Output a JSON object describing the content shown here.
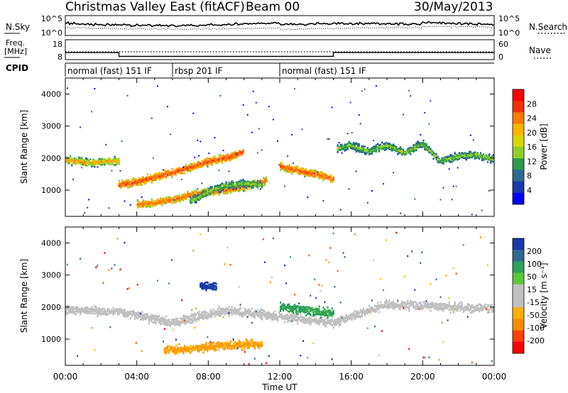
{
  "header": {
    "title": "Christmas Valley East (fitACF)",
    "beam": "Beam 00",
    "date": "30/May/2013"
  },
  "noise_panel": {
    "left_label": "N.Sky",
    "right_label": "N.Search",
    "left_ticks": [
      "10^5",
      "10^0"
    ],
    "right_ticks": [
      "10^5",
      "10^0"
    ]
  },
  "freq_panel": {
    "left_label_line1": "Freq.",
    "left_label_line2": "[MHz]",
    "left_ticks": [
      "18",
      "8"
    ],
    "right_label": "Nave",
    "right_ticks": [
      "60",
      "0"
    ]
  },
  "cpid_panel": {
    "label": "CPID",
    "segments": [
      {
        "label": "normal (fast) 151 IF",
        "start_h": 0,
        "end_h": 6
      },
      {
        "label": "rbsp 201 IF",
        "start_h": 6,
        "end_h": 12
      },
      {
        "label": "normal (fast) 151 IF",
        "start_h": 12,
        "end_h": 24
      }
    ]
  },
  "power_panel": {
    "ylabel": "Slant Range [km]",
    "colorbar_label": "Power [dB]",
    "colorbar_ticks": [
      "28",
      "24",
      "20",
      "16",
      "12",
      "8",
      "4"
    ],
    "colorbar_colors": [
      "#ff0000",
      "#f03000",
      "#ff7a00",
      "#ffb400",
      "#d8d800",
      "#8ecf2e",
      "#2e9a4a",
      "#2e6a90",
      "#1a3aa8",
      "#0000ff"
    ]
  },
  "velocity_panel": {
    "ylabel": "Slant Range [km]",
    "colorbar_label": "Velocity [m s⁻¹]",
    "colorbar_ticks": [
      "200",
      "100",
      "50",
      "15",
      "-15",
      "-50",
      "-100",
      "-200"
    ],
    "colorbar_colors": [
      "#1a3aa8",
      "#2e6a90",
      "#2ea05a",
      "#5ac83a",
      "#c0c0c0",
      "#c0c0c0",
      "#ffb000",
      "#ff8a00",
      "#ff4000",
      "#ff0000"
    ]
  },
  "x_axis": {
    "label": "Time UT",
    "ticks": [
      "00:00",
      "04:00",
      "08:00",
      "12:00",
      "16:00",
      "20:00",
      "00:00"
    ]
  },
  "chart_data": [
    {
      "type": "line",
      "title": "Christmas Valley East (fitACF)",
      "xlabel": "Time UT",
      "ylabel": "Freq. [MHz]",
      "x_unit": "hours UT",
      "xlim": [
        0,
        24
      ],
      "ylim": [
        8,
        18
      ],
      "series": [
        {
          "x": [
            0,
            3,
            3,
            15,
            15,
            24
          ],
          "values": [
            13.5,
            13.5,
            10.5,
            10.5,
            13.5,
            13.5
          ]
        }
      ]
    },
    {
      "type": "heatmap",
      "name": "Power",
      "colorbar_label": "Power [dB]",
      "xlabel": "Time UT",
      "ylabel": "Slant Range [km]",
      "xlim": [
        0,
        24
      ],
      "ylim": [
        180,
        4500
      ],
      "clim": [
        0,
        30
      ],
      "bands": [
        {
          "t": [
            0,
            0.5,
            1.5,
            2.5,
            3
          ],
          "r": [
            1950,
            1900,
            1850,
            1900,
            1900
          ],
          "value": 21
        },
        {
          "t": [
            3,
            4,
            5,
            6,
            7,
            8,
            9,
            10
          ],
          "r": [
            1150,
            1250,
            1400,
            1550,
            1700,
            1900,
            2000,
            2200
          ],
          "value": 26
        },
        {
          "t": [
            4,
            5,
            6,
            7,
            8,
            9,
            10,
            11.3
          ],
          "r": [
            550,
            600,
            700,
            850,
            950,
            1000,
            1100,
            1300
          ],
          "value": 24
        },
        {
          "t": [
            7,
            8,
            9,
            10,
            11
          ],
          "r": [
            650,
            950,
            1150,
            1200,
            1150
          ],
          "value": 17
        },
        {
          "t": [
            12,
            13,
            14,
            15
          ],
          "r": [
            1750,
            1600,
            1500,
            1350
          ],
          "value": 25
        },
        {
          "t": [
            15.2,
            16,
            17,
            18,
            19,
            20,
            21,
            22,
            23,
            24
          ],
          "r": [
            2300,
            2400,
            2200,
            2400,
            2150,
            2450,
            1900,
            2050,
            2100,
            1950
          ],
          "value": 17
        }
      ]
    },
    {
      "type": "heatmap",
      "name": "Velocity",
      "colorbar_label": "Velocity [m s⁻¹]",
      "xlabel": "Time UT",
      "ylabel": "Slant Range [km]",
      "xlim": [
        0,
        24
      ],
      "ylim": [
        180,
        4500
      ],
      "clim": [
        -200,
        200
      ],
      "bands": [
        {
          "t": [
            0,
            3,
            6,
            9,
            12,
            15,
            18,
            21,
            24
          ],
          "r": [
            1900,
            1850,
            1500,
            1900,
            1700,
            1500,
            2100,
            2000,
            1950
          ],
          "value": 0
        },
        {
          "t": [
            5.5,
            7,
            9,
            11
          ],
          "r": [
            650,
            700,
            800,
            850
          ],
          "value": -60
        },
        {
          "t": [
            7.5,
            8.5
          ],
          "r": [
            2650,
            2650
          ],
          "value": 200
        },
        {
          "t": [
            12,
            15
          ],
          "r": [
            2000,
            1800
          ],
          "value": 40
        }
      ]
    }
  ]
}
